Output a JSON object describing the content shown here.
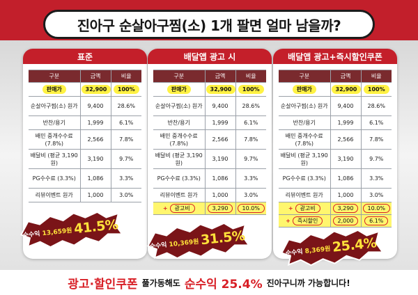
{
  "title": "진아구 순살아구찜(소) 1개 팔면 얼마 남을까?",
  "col_headers": {
    "label": "구분",
    "amount": "금액",
    "ratio": "비율"
  },
  "base_rows": [
    {
      "label": "순살아구찜(소) 원가",
      "amount": "9,400",
      "ratio": "28.6%"
    },
    {
      "label": "반찬/용기",
      "amount": "1,999",
      "ratio": "6.1%"
    },
    {
      "label": "배민 중개수수료 (7.8%)",
      "amount": "2,566",
      "ratio": "7.8%"
    },
    {
      "label": "배달비 (평균 3,190원)",
      "amount": "3,190",
      "ratio": "9.7%"
    },
    {
      "label": "PG수수료 (3.3%)",
      "amount": "1,086",
      "ratio": "3.3%"
    },
    {
      "label": "리뷰이벤트 원가",
      "amount": "1,000",
      "ratio": "3.0%"
    }
  ],
  "sale_row": {
    "label": "판매가",
    "amount": "32,900",
    "ratio": "100%"
  },
  "panels": [
    {
      "header": "표준",
      "extras": [],
      "profit_label": "순수익",
      "profit_amount": "13,659원",
      "profit_pct": "41.5%"
    },
    {
      "header": "배달앱 광고 시",
      "extras": [
        {
          "plus": "+",
          "label": "광고비",
          "amount": "3,290",
          "ratio": "10.0%"
        }
      ],
      "profit_label": "순수익",
      "profit_amount": "10,369원",
      "profit_pct": "31.5%"
    },
    {
      "header": "배달앱 광고+즉시할인쿠폰",
      "extras": [
        {
          "plus": "+",
          "label": "광고비",
          "amount": "3,290",
          "ratio": "10.0%"
        },
        {
          "plus": "+",
          "label": "즉시할인",
          "amount": "2,000",
          "ratio": "6.1%"
        }
      ],
      "profit_label": "순수익",
      "profit_amount": "8,369원",
      "profit_pct": "25.4%"
    }
  ],
  "footer": {
    "part1": "광고·할인쿠폰",
    "part2": "풀가동해도",
    "part3": "순수익 25.4%",
    "part4": "진아구니까 가능합니다!"
  },
  "colors": {
    "brand_red": "#c41f2a",
    "table_header": "#7a2a2e",
    "highlight_yellow": "#fff244",
    "burst_dark": "#7a1418",
    "burst_text": "#ffe23a"
  }
}
